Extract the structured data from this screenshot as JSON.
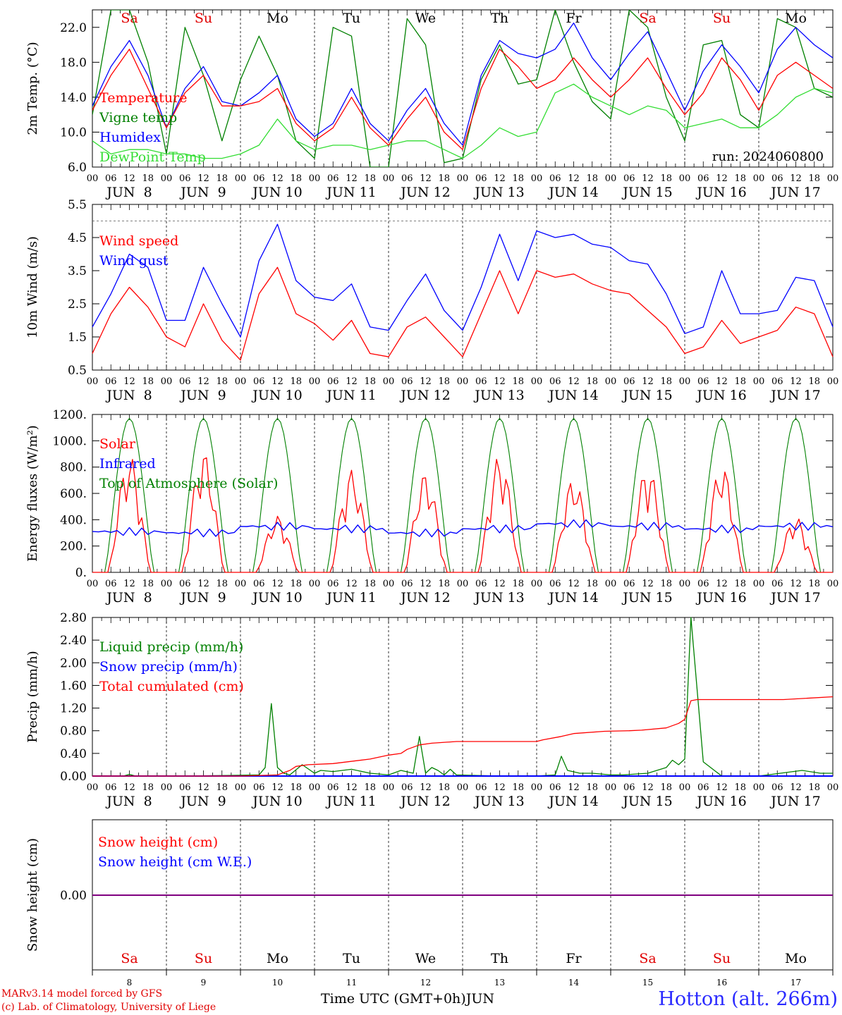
{
  "days": {
    "weekday": [
      "Sa",
      "Su",
      "Mo",
      "Tu",
      "We",
      "Th",
      "Fr",
      "Sa",
      "Su",
      "Mo"
    ],
    "weekend": [
      true,
      true,
      false,
      false,
      false,
      false,
      false,
      true,
      true,
      false
    ],
    "date_label": [
      "JUN  8",
      "JUN  9",
      "JUN 10",
      "JUN 11",
      "JUN 12",
      "JUN 13",
      "JUN 14",
      "JUN 15",
      "JUN 16",
      "JUN 17"
    ],
    "day_number": [
      "8",
      "9",
      "10",
      "11",
      "12",
      "13",
      "14",
      "15",
      "16",
      "17"
    ],
    "hour_ticks": [
      "00",
      "06",
      "12",
      "18"
    ]
  },
  "colors": {
    "red": "#ff0000",
    "green": "#008000",
    "blue": "#0000ff",
    "lightgreen": "#33dd33",
    "purple": "#800080"
  },
  "chart_data": [
    {
      "type": "line",
      "ylabel": "2m Temp. (°C)",
      "ylim": [
        6,
        24
      ],
      "yticks": [
        "6.0",
        "10.0",
        "14.0",
        "18.0",
        "22.0"
      ],
      "run_label": "run: 2024060800",
      "x_hours": [
        0,
        6,
        12,
        18,
        24,
        30,
        36,
        42,
        48,
        54,
        60,
        66,
        72,
        78,
        84,
        90,
        96,
        102,
        108,
        114,
        120,
        126,
        132,
        138,
        144,
        150,
        156,
        162,
        168,
        174,
        180,
        186,
        192,
        198,
        204,
        210,
        216,
        222,
        228,
        234,
        240
      ],
      "series": [
        {
          "name": "Temperature",
          "color": "red",
          "values": [
            12.5,
            16.5,
            19.5,
            15.0,
            10.5,
            14.5,
            16.5,
            13.0,
            13.0,
            13.5,
            15.0,
            11.0,
            9.0,
            10.5,
            14.0,
            10.5,
            8.5,
            11.5,
            14.0,
            10.0,
            8.0,
            15.0,
            19.5,
            17.5,
            15.0,
            16.0,
            18.5,
            16.0,
            14.0,
            16.0,
            18.5,
            15.0,
            12.0,
            14.5,
            18.5,
            16.0,
            12.5,
            16.5,
            18.0,
            16.5,
            15.0
          ]
        },
        {
          "name": "Vigne temp",
          "color": "green",
          "values": [
            12.0,
            24.0,
            24.0,
            18.0,
            7.5,
            22.0,
            16.5,
            9.0,
            16.0,
            21.0,
            16.5,
            9.0,
            7.0,
            22.0,
            21.0,
            6.0,
            6.0,
            23.0,
            20.0,
            6.5,
            7.0,
            16.0,
            20.0,
            15.5,
            16.0,
            24.0,
            18.0,
            13.5,
            11.5,
            24.0,
            22.0,
            14.0,
            9.0,
            20.0,
            20.5,
            12.0,
            10.5,
            23.0,
            22.0,
            15.0,
            14.0
          ]
        },
        {
          "name": "Humidex",
          "color": "blue",
          "values": [
            13.0,
            17.5,
            20.5,
            16.5,
            10.5,
            15.0,
            17.5,
            13.5,
            13.0,
            14.5,
            16.5,
            11.5,
            9.5,
            11.0,
            15.0,
            11.0,
            9.0,
            12.5,
            15.0,
            11.0,
            8.5,
            16.5,
            20.5,
            19.0,
            18.5,
            19.5,
            22.5,
            18.5,
            16.0,
            19.0,
            21.5,
            17.0,
            12.5,
            17.0,
            20.0,
            17.5,
            14.5,
            19.5,
            22.0,
            20.0,
            18.5
          ]
        },
        {
          "name": "DewPoint Temp",
          "color": "lightgreen",
          "values": [
            9.0,
            7.5,
            8.0,
            8.0,
            7.5,
            7.5,
            7.0,
            7.0,
            7.5,
            8.5,
            11.5,
            9.0,
            8.0,
            8.5,
            8.5,
            8.0,
            8.5,
            9.0,
            9.0,
            8.0,
            7.0,
            8.5,
            10.5,
            9.5,
            10.0,
            14.5,
            15.5,
            14.0,
            13.0,
            12.0,
            13.0,
            12.5,
            10.5,
            11.0,
            11.5,
            10.5,
            10.5,
            12.0,
            14.0,
            15.0,
            14.5
          ]
        }
      ]
    },
    {
      "type": "line",
      "ylabel": "10m Wind (m/s)",
      "ylim": [
        0.5,
        5.5
      ],
      "yticks": [
        "0.5",
        "1.5",
        "2.5",
        "3.5",
        "4.5",
        "5.5"
      ],
      "reference_line": 5.0,
      "x_hours": [
        0,
        6,
        12,
        18,
        24,
        30,
        36,
        42,
        48,
        54,
        60,
        66,
        72,
        78,
        84,
        90,
        96,
        102,
        108,
        114,
        120,
        126,
        132,
        138,
        144,
        150,
        156,
        162,
        168,
        174,
        180,
        186,
        192,
        198,
        204,
        210,
        216,
        222,
        228,
        234,
        240
      ],
      "series": [
        {
          "name": "Wind speed",
          "color": "red",
          "values": [
            1.0,
            2.2,
            3.0,
            2.4,
            1.5,
            1.2,
            2.5,
            1.4,
            0.8,
            2.8,
            3.6,
            2.2,
            1.9,
            1.4,
            2.0,
            1.0,
            0.9,
            1.8,
            2.1,
            1.5,
            0.9,
            2.2,
            3.5,
            2.2,
            3.5,
            3.3,
            3.4,
            3.1,
            2.9,
            2.8,
            2.3,
            1.8,
            1.0,
            1.2,
            2.0,
            1.3,
            1.5,
            1.7,
            2.4,
            2.2,
            0.9
          ]
        },
        {
          "name": "Wind gust",
          "color": "blue",
          "values": [
            1.8,
            2.8,
            4.0,
            3.6,
            2.0,
            2.0,
            3.6,
            2.5,
            1.5,
            3.8,
            4.9,
            3.2,
            2.7,
            2.6,
            3.1,
            1.8,
            1.7,
            2.6,
            3.4,
            2.3,
            1.7,
            3.0,
            4.6,
            3.2,
            4.7,
            4.5,
            4.6,
            4.3,
            4.2,
            3.8,
            3.7,
            2.8,
            1.6,
            1.8,
            3.5,
            2.2,
            2.2,
            2.3,
            3.3,
            3.2,
            1.8
          ]
        }
      ]
    },
    {
      "type": "line",
      "ylabel": "Energy fluxes (W/m²)",
      "ylim": [
        0,
        1200
      ],
      "yticks": [
        "0.",
        "200.",
        "400.",
        "600.",
        "800.",
        "1000.",
        "1200."
      ],
      "series_names": [
        "Solar",
        "Infrared",
        "Top of Atmosphere (Solar)"
      ],
      "toa_peak": 1170,
      "solar_daily_peak": [
        890,
        920,
        430,
        780,
        760,
        890,
        720,
        810,
        820,
        420
      ],
      "infrared_daily_mean": [
        310,
        300,
        350,
        330,
        300,
        330,
        370,
        350,
        330,
        350
      ]
    },
    {
      "type": "line",
      "ylabel": "Precip (mm/h)",
      "ylim": [
        0,
        2.8
      ],
      "yticks": [
        "0.00",
        "0.40",
        "0.80",
        "1.20",
        "1.60",
        "2.00",
        "2.40",
        "2.80"
      ],
      "series": [
        {
          "name": "Liquid precip (mm/h)",
          "color": "green",
          "x_hours": [
            0,
            10,
            12,
            14,
            30,
            44,
            54,
            56,
            58,
            60,
            62,
            64,
            68,
            72,
            74,
            78,
            84,
            90,
            96,
            100,
            104,
            106,
            108,
            110,
            112,
            114,
            116,
            118,
            132,
            144,
            150,
            152,
            154,
            158,
            162,
            168,
            172,
            180,
            186,
            188,
            190,
            192,
            194,
            198,
            204,
            216,
            230,
            236,
            240
          ],
          "values": [
            0,
            0,
            0.03,
            0,
            0,
            0.01,
            0.02,
            0.15,
            1.28,
            0.15,
            0.05,
            0.02,
            0.2,
            0.05,
            0.1,
            0.08,
            0.12,
            0.05,
            0.02,
            0.1,
            0.05,
            0.7,
            0.05,
            0.15,
            0.1,
            0.02,
            0.12,
            0.02,
            0,
            0,
            0.02,
            0.35,
            0.1,
            0.05,
            0.05,
            0.02,
            0.02,
            0.05,
            0.15,
            0.28,
            0.2,
            0.3,
            2.8,
            0.25,
            0,
            0,
            0.1,
            0.05,
            0.05
          ]
        },
        {
          "name": "Snow precip (mm/h)",
          "color": "blue",
          "x_hours": [
            0,
            240
          ],
          "values": [
            0,
            0
          ]
        },
        {
          "name": "Total cumulated (cm)",
          "color": "red",
          "x_hours": [
            0,
            48,
            60,
            64,
            66,
            70,
            78,
            90,
            96,
            100,
            102,
            106,
            110,
            118,
            124,
            132,
            144,
            146,
            152,
            156,
            166,
            174,
            178,
            186,
            190,
            192,
            194,
            196,
            210,
            224,
            240
          ],
          "values": [
            0,
            0,
            0.02,
            0.1,
            0.17,
            0.2,
            0.22,
            0.3,
            0.37,
            0.4,
            0.47,
            0.55,
            0.58,
            0.61,
            0.61,
            0.61,
            0.61,
            0.64,
            0.7,
            0.75,
            0.79,
            0.8,
            0.81,
            0.85,
            0.93,
            1.0,
            1.33,
            1.35,
            1.35,
            1.35,
            1.4
          ]
        }
      ]
    },
    {
      "type": "line",
      "ylabel": "Snow height (cm)",
      "yticks": [
        "0.00"
      ],
      "series": [
        {
          "name": "Snow height (cm)",
          "color": "red",
          "x_hours": [
            0,
            240
          ],
          "values": [
            0,
            0
          ]
        },
        {
          "name": "Snow height (cm W.E.)",
          "color": "blue",
          "x_hours": [
            0,
            240
          ],
          "values": [
            0,
            0
          ]
        }
      ]
    }
  ],
  "footer": {
    "model": "MARv3.14 model forced by GFS",
    "copyright": "(c) Lab. of Climatology, University of Liege",
    "axis_title": "Time UTC (GMT+0h)",
    "month": "JUN",
    "station": "Hotton (alt. 266m)"
  }
}
